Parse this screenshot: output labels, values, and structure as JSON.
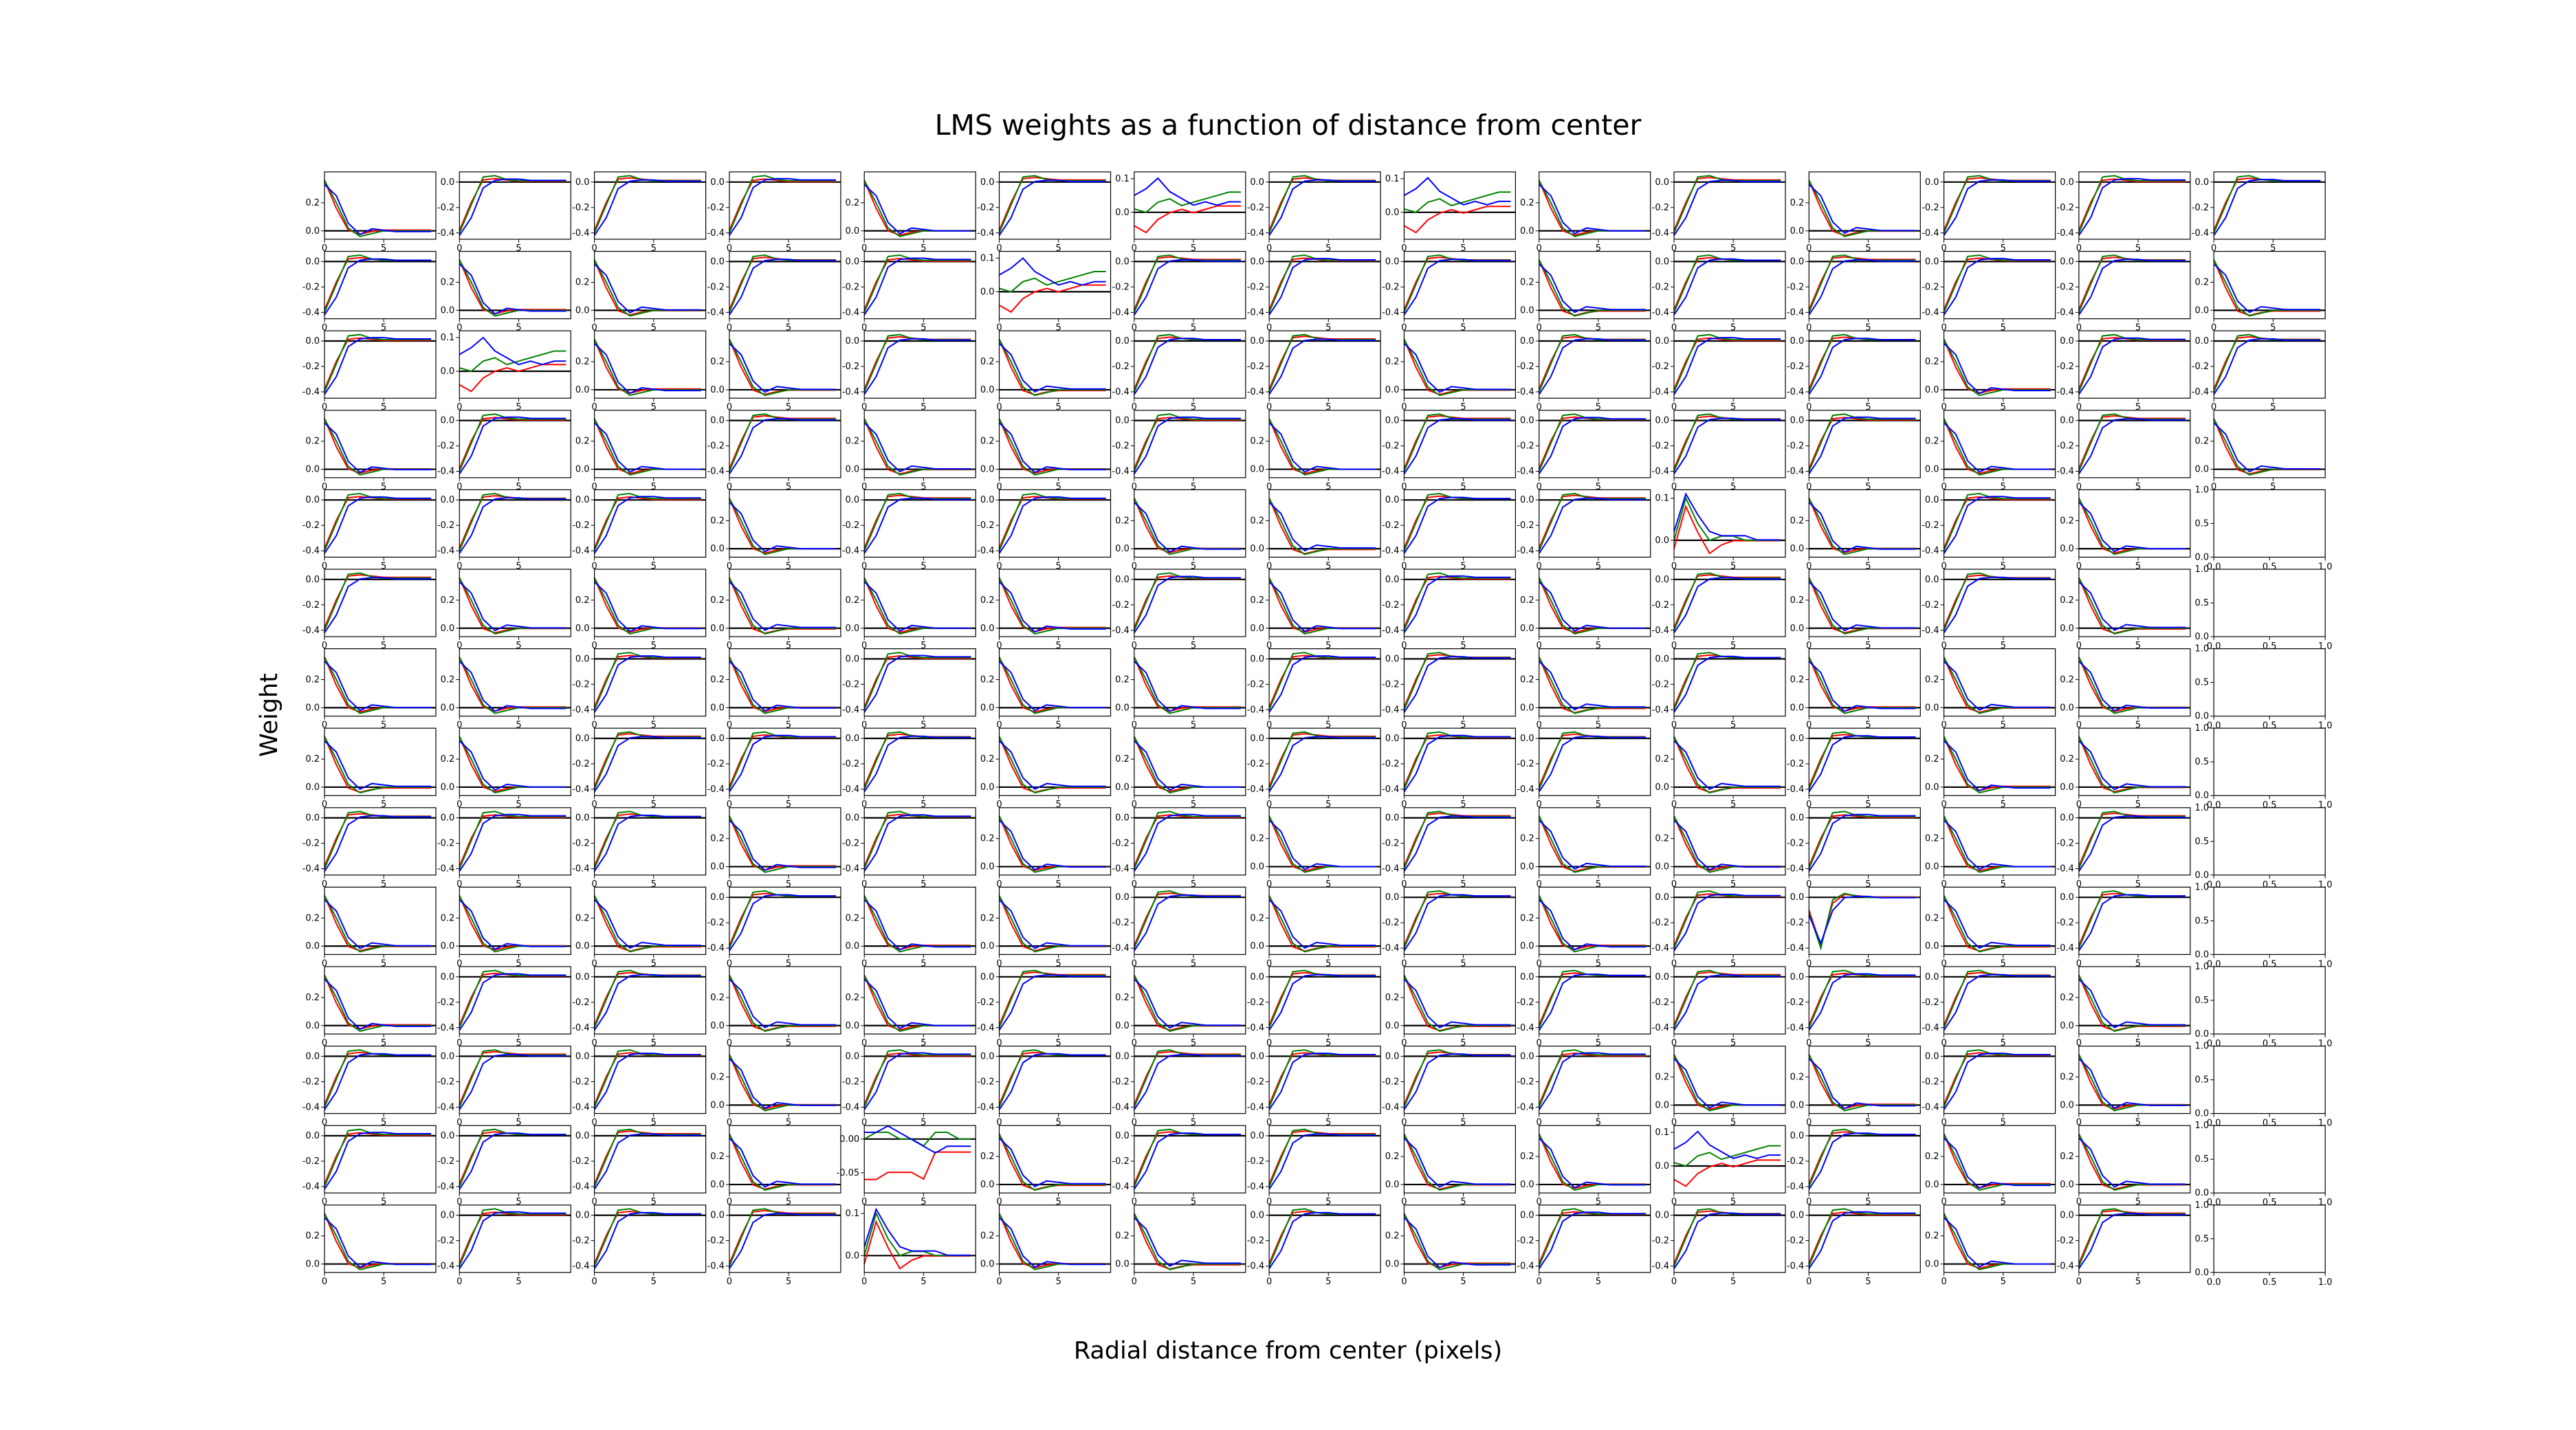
{
  "title": "LMS weights as a function of distance from center",
  "xlabel": "Radial distance from center (pixels)",
  "ylabel": "Weight",
  "chart_data": {
    "type": "line",
    "layout": "grid of small multiples",
    "rows": 14,
    "cols": 15,
    "x": [
      0,
      1,
      2,
      3,
      4,
      5,
      6,
      7,
      8,
      9
    ],
    "x_ticks": [
      0,
      5
    ],
    "series_colors": {
      "red": "#ff0000",
      "green": "#008000",
      "blue": "#0000ff",
      "black": "#000000"
    },
    "empty_subplot_ticks": {
      "x": [
        "0.0",
        "0.5",
        "1.0"
      ],
      "y": [
        "0.0",
        "0.5",
        "1.0"
      ]
    },
    "empty_subplots_from_row": 4,
    "empty_subplot_col": 14,
    "prototypes": {
      "rise_neg": {
        "ylim": [
          -0.45,
          0.08
        ],
        "yticks": [
          "0.0",
          "-0.2",
          "-0.4"
        ],
        "ytick_values": [
          0,
          -0.2,
          -0.4
        ],
        "red": [
          -0.38,
          -0.16,
          0.02,
          0.03,
          0.02,
          0.01,
          0.01,
          0.01,
          0.01,
          0.01
        ],
        "green": [
          -0.4,
          -0.18,
          0.04,
          0.05,
          0.02,
          0.01,
          0.01,
          0.01,
          0.01,
          0.01
        ],
        "blue": [
          -0.42,
          -0.28,
          -0.05,
          0.01,
          0.02,
          0.02,
          0.01,
          0.01,
          0.01,
          0.01
        ]
      },
      "decay_pos": {
        "ylim": [
          -0.06,
          0.42
        ],
        "yticks": [
          "0.0",
          "0.2"
        ],
        "ytick_values": [
          0,
          0.2
        ],
        "red": [
          0.36,
          0.16,
          0.0,
          -0.03,
          -0.01,
          0.0,
          0.0,
          0.0,
          0.0,
          0.0
        ],
        "green": [
          0.36,
          0.2,
          0.02,
          -0.04,
          -0.02,
          0.0,
          0.0,
          0.0,
          0.0,
          0.0
        ],
        "blue": [
          0.33,
          0.25,
          0.06,
          -0.02,
          0.02,
          0.01,
          0.0,
          0.0,
          0.0,
          0.0
        ]
      },
      "noisy_small": {
        "ylim": [
          -0.08,
          0.12
        ],
        "yticks": [
          "0.1",
          "0.0"
        ],
        "ytick_values": [
          0.1,
          0.0
        ],
        "red": [
          -0.04,
          -0.06,
          -0.02,
          0.0,
          0.01,
          0.0,
          0.01,
          0.02,
          0.02,
          0.02
        ],
        "green": [
          0.01,
          0.0,
          0.03,
          0.04,
          0.02,
          0.03,
          0.04,
          0.05,
          0.06,
          0.06
        ],
        "blue": [
          0.05,
          0.07,
          0.1,
          0.06,
          0.04,
          0.02,
          0.03,
          0.02,
          0.03,
          0.03
        ]
      },
      "spike": {
        "ylim": [
          -0.04,
          0.12
        ],
        "yticks": [
          "0.1",
          "0.0"
        ],
        "ytick_values": [
          0.1,
          0.0
        ],
        "red": [
          -0.02,
          0.08,
          0.02,
          -0.03,
          -0.01,
          0.0,
          0.0,
          0.0,
          0.0,
          0.0
        ],
        "green": [
          0.0,
          0.1,
          0.04,
          0.0,
          0.01,
          0.01,
          0.0,
          0.0,
          0.0,
          0.0
        ],
        "blue": [
          0.02,
          0.11,
          0.06,
          0.02,
          0.01,
          0.01,
          0.01,
          0.0,
          0.0,
          0.0
        ]
      },
      "small_neg": {
        "ylim": [
          -0.08,
          0.02
        ],
        "yticks": [
          "0.00",
          "-0.05"
        ],
        "ytick_values": [
          0.0,
          -0.05
        ],
        "red": [
          -0.06,
          -0.06,
          -0.05,
          -0.05,
          -0.05,
          -0.06,
          -0.02,
          -0.02,
          -0.02,
          -0.02
        ],
        "green": [
          0.0,
          0.01,
          0.01,
          0.0,
          0.0,
          -0.01,
          0.01,
          0.01,
          0.0,
          0.0
        ],
        "blue": [
          0.01,
          0.01,
          0.02,
          0.01,
          0.0,
          -0.01,
          -0.02,
          -0.01,
          -0.01,
          -0.01
        ]
      },
      "dip_rise": {
        "ylim": [
          -0.45,
          0.08
        ],
        "yticks": [
          "0.0",
          "-0.2",
          "-0.4"
        ],
        "ytick_values": [
          0,
          -0.2,
          -0.4
        ],
        "red": [
          -0.1,
          -0.38,
          -0.05,
          0.02,
          0.01,
          0.0,
          0.0,
          0.0,
          0.0,
          0.0
        ],
        "green": [
          -0.12,
          -0.4,
          -0.02,
          0.03,
          0.01,
          0.0,
          0.0,
          0.0,
          0.0,
          0.0
        ],
        "blue": [
          -0.14,
          -0.36,
          -0.1,
          0.0,
          0.01,
          0.01,
          0.0,
          0.0,
          0.0,
          0.0
        ]
      }
    },
    "subplots": [
      [
        "decay_pos",
        "rise_neg",
        "rise_neg",
        "rise_neg",
        "decay_pos",
        "rise_neg",
        "noisy_small",
        "rise_neg",
        "noisy_small",
        "decay_pos",
        "rise_neg",
        "decay_pos",
        "rise_neg",
        "rise_neg",
        "rise_neg"
      ],
      [
        "rise_neg",
        "decay_pos",
        "decay_pos",
        "rise_neg",
        "rise_neg",
        "noisy_small",
        "rise_neg",
        "rise_neg",
        "rise_neg",
        "decay_pos",
        "rise_neg",
        "rise_neg",
        "rise_neg",
        "rise_neg",
        "decay_pos"
      ],
      [
        "rise_neg",
        "noisy_small",
        "decay_pos",
        "decay_pos",
        "rise_neg",
        "decay_pos",
        "rise_neg",
        "rise_neg",
        "decay_pos",
        "rise_neg",
        "rise_neg",
        "rise_neg",
        "decay_pos",
        "rise_neg",
        "rise_neg"
      ],
      [
        "decay_pos",
        "rise_neg",
        "decay_pos",
        "rise_neg",
        "decay_pos",
        "decay_pos",
        "rise_neg",
        "decay_pos",
        "rise_neg",
        "rise_neg",
        "rise_neg",
        "rise_neg",
        "decay_pos",
        "rise_neg",
        "decay_pos"
      ],
      [
        "rise_neg",
        "rise_neg",
        "rise_neg",
        "decay_pos",
        "rise_neg",
        "rise_neg",
        "decay_pos",
        "decay_pos",
        "rise_neg",
        "rise_neg",
        "spike",
        "decay_pos",
        "rise_neg",
        "decay_pos",
        "empty"
      ],
      [
        "rise_neg",
        "decay_pos",
        "decay_pos",
        "decay_pos",
        "decay_pos",
        "decay_pos",
        "rise_neg",
        "decay_pos",
        "rise_neg",
        "decay_pos",
        "rise_neg",
        "decay_pos",
        "rise_neg",
        "decay_pos",
        "empty"
      ],
      [
        "decay_pos",
        "decay_pos",
        "rise_neg",
        "decay_pos",
        "rise_neg",
        "decay_pos",
        "decay_pos",
        "rise_neg",
        "rise_neg",
        "decay_pos",
        "rise_neg",
        "decay_pos",
        "decay_pos",
        "decay_pos",
        "empty"
      ],
      [
        "decay_pos",
        "decay_pos",
        "rise_neg",
        "rise_neg",
        "rise_neg",
        "decay_pos",
        "decay_pos",
        "rise_neg",
        "rise_neg",
        "rise_neg",
        "decay_pos",
        "rise_neg",
        "decay_pos",
        "decay_pos",
        "empty"
      ],
      [
        "rise_neg",
        "rise_neg",
        "rise_neg",
        "decay_pos",
        "rise_neg",
        "decay_pos",
        "rise_neg",
        "decay_pos",
        "rise_neg",
        "decay_pos",
        "decay_pos",
        "rise_neg",
        "decay_pos",
        "rise_neg",
        "empty"
      ],
      [
        "decay_pos",
        "decay_pos",
        "decay_pos",
        "rise_neg",
        "decay_pos",
        "decay_pos",
        "rise_neg",
        "decay_pos",
        "rise_neg",
        "decay_pos",
        "rise_neg",
        "dip_rise",
        "decay_pos",
        "rise_neg",
        "empty"
      ],
      [
        "decay_pos",
        "rise_neg",
        "rise_neg",
        "decay_pos",
        "decay_pos",
        "rise_neg",
        "decay_pos",
        "rise_neg",
        "decay_pos",
        "rise_neg",
        "rise_neg",
        "rise_neg",
        "rise_neg",
        "decay_pos",
        "empty"
      ],
      [
        "rise_neg",
        "rise_neg",
        "rise_neg",
        "decay_pos",
        "rise_neg",
        "rise_neg",
        "rise_neg",
        "rise_neg",
        "rise_neg",
        "rise_neg",
        "decay_pos",
        "decay_pos",
        "rise_neg",
        "decay_pos",
        "empty"
      ],
      [
        "rise_neg",
        "rise_neg",
        "rise_neg",
        "decay_pos",
        "small_neg",
        "decay_pos",
        "rise_neg",
        "rise_neg",
        "decay_pos",
        "decay_pos",
        "noisy_small",
        "rise_neg",
        "decay_pos",
        "decay_pos",
        "empty"
      ],
      [
        "decay_pos",
        "rise_neg",
        "rise_neg",
        "rise_neg",
        "spike",
        "decay_pos",
        "decay_pos",
        "rise_neg",
        "decay_pos",
        "rise_neg",
        "rise_neg",
        "rise_neg",
        "decay_pos",
        "rise_neg",
        "empty"
      ]
    ]
  }
}
